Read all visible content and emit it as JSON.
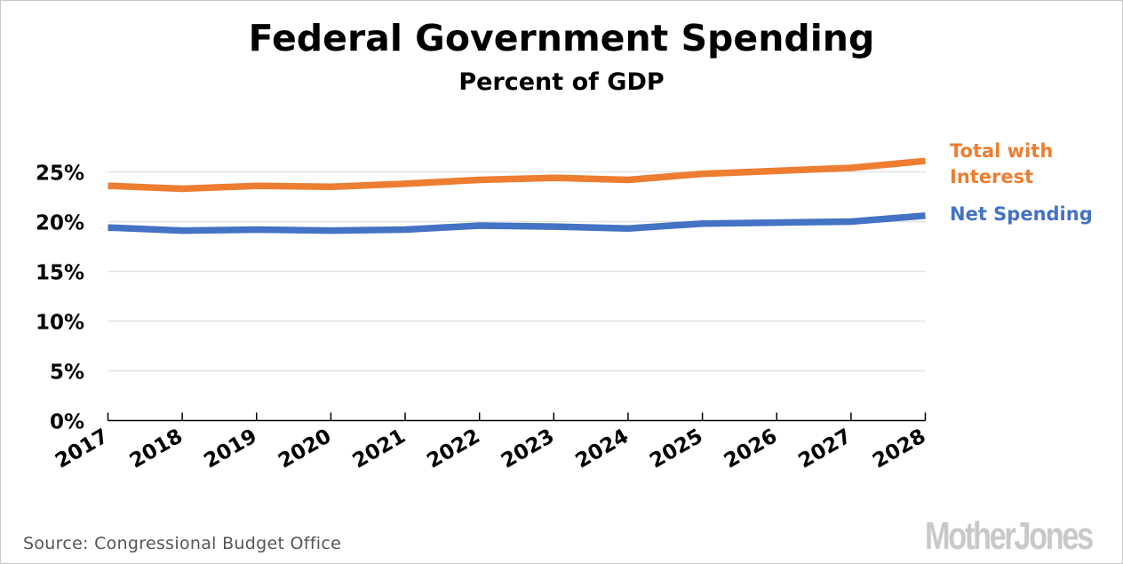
{
  "chart_data": {
    "type": "line",
    "title": "Federal Government Spending",
    "subtitle": "Percent of GDP",
    "xlabel": "",
    "ylabel": "",
    "x": [
      "2017",
      "2018",
      "2019",
      "2020",
      "2021",
      "2022",
      "2023",
      "2024",
      "2025",
      "2026",
      "2027",
      "2028"
    ],
    "ylim": [
      0,
      25
    ],
    "yticks": [
      0,
      5,
      10,
      15,
      20,
      25
    ],
    "ytick_labels": [
      "0%",
      "5%",
      "10%",
      "15%",
      "20%",
      "25%"
    ],
    "grid": true,
    "legend_placement": "right (direct labels at line ends)",
    "series": [
      {
        "name": "Total with Interest",
        "label_lines": [
          "Total with",
          "Interest"
        ],
        "color": "#ED7D31",
        "values": [
          23.6,
          23.3,
          23.6,
          23.5,
          23.8,
          24.2,
          24.4,
          24.2,
          24.8,
          25.1,
          25.4,
          26.1
        ]
      },
      {
        "name": "Net Spending",
        "label_lines": [
          "Net Spending"
        ],
        "color": "#4472C4",
        "values": [
          19.4,
          19.1,
          19.2,
          19.1,
          19.2,
          19.6,
          19.5,
          19.3,
          19.8,
          19.9,
          20.0,
          20.6
        ]
      }
    ]
  },
  "source": "Source: Congressional Budget Office",
  "logo": "MotherJones"
}
